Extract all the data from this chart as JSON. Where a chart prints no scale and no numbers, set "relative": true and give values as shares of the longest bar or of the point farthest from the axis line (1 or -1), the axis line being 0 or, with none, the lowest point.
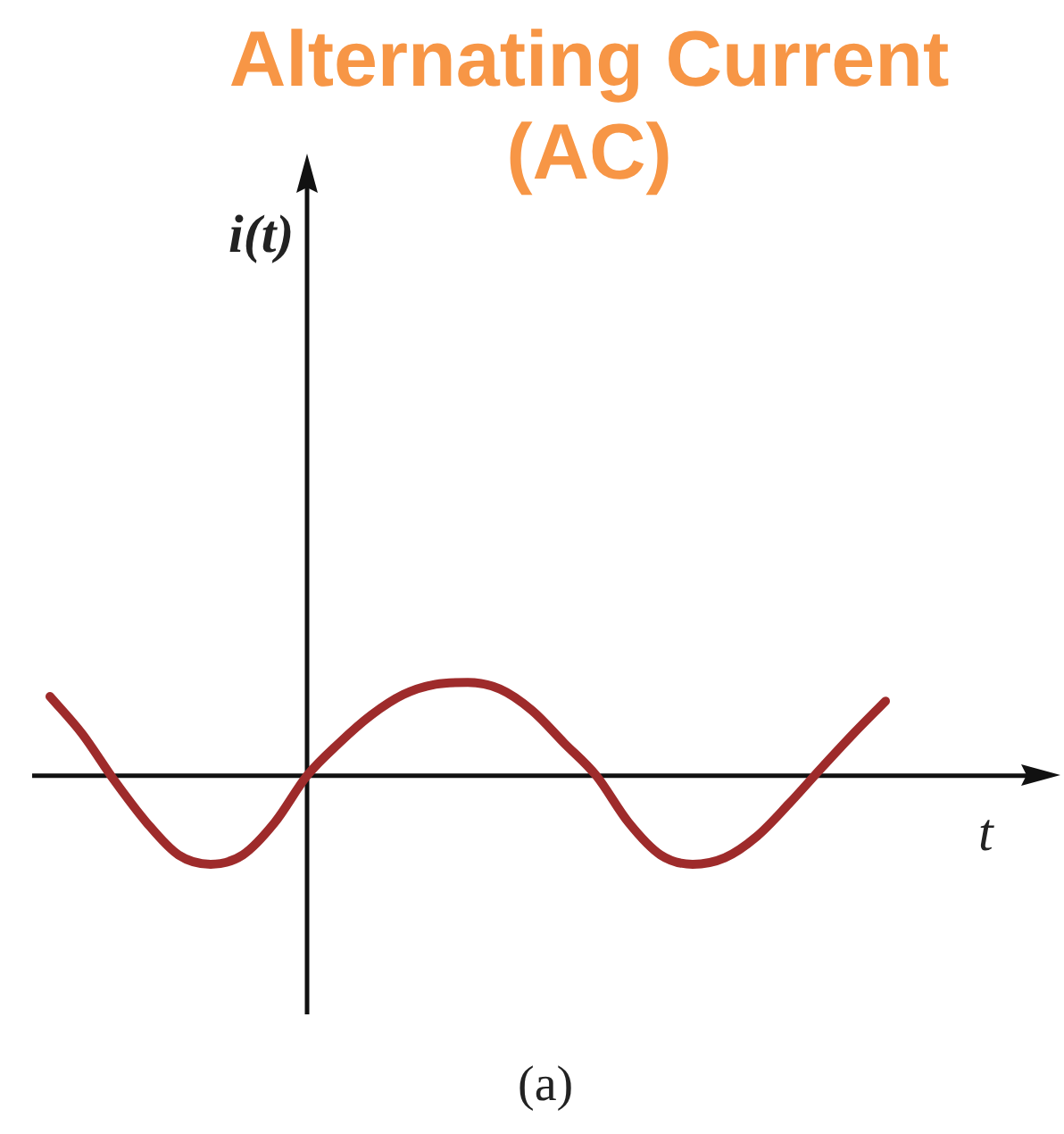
{
  "chart_data": {
    "type": "line",
    "title": "Alternating Current (AC)",
    "xlabel": "t",
    "annotations": [
      "i(t)",
      "(a)"
    ],
    "relative": true,
    "categories": [
      null,
      null,
      null,
      null,
      null,
      null,
      null,
      null,
      null,
      null,
      null,
      null,
      null,
      null,
      null,
      null,
      null,
      null,
      null,
      null,
      null,
      null,
      null,
      null,
      null,
      null,
      null
    ],
    "color": "#9e2b2b",
    "values": [
      0.85,
      0.45,
      -0.05,
      -0.5,
      -0.85,
      -0.95,
      -0.85,
      -0.5,
      0,
      0.35,
      0.65,
      0.87,
      0.98,
      1.0,
      0.93,
      0.7,
      0.35,
      0,
      -0.5,
      -0.85,
      -0.95,
      -0.88,
      -0.65,
      -0.3,
      0.08,
      0.45,
      0.8
    ]
  }
}
